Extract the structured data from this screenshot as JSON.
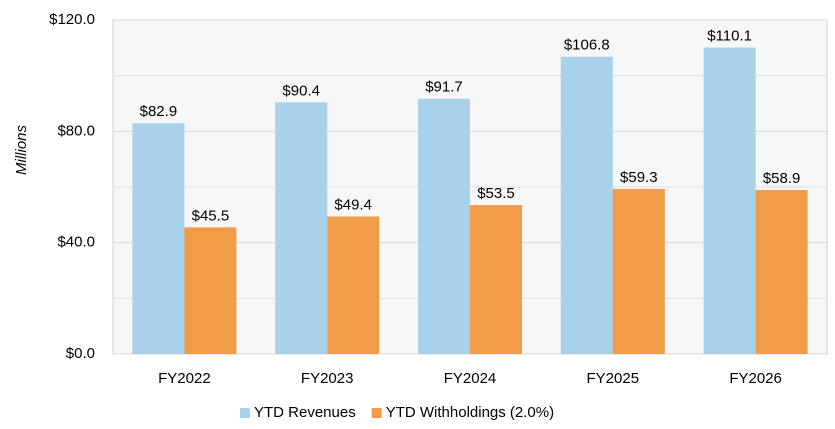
{
  "chart_data": {
    "type": "bar",
    "y_label": "Millions",
    "categories": [
      "FY2022",
      "FY2023",
      "FY2024",
      "FY2025",
      "FY2026"
    ],
    "series": [
      {
        "name": "YTD Revenues",
        "color": "#a9d1ea",
        "values": [
          82.9,
          90.4,
          91.7,
          106.8,
          110.1
        ],
        "value_labels": [
          "$82.9",
          "$90.4",
          "$91.7",
          "$106.8",
          "$110.1"
        ]
      },
      {
        "name": "YTD Withholdings (2.0%)",
        "color": "#f09c48",
        "values": [
          45.5,
          49.4,
          53.5,
          59.3,
          58.9
        ],
        "value_labels": [
          "$45.5",
          "$49.4",
          "$53.5",
          "$59.3",
          "$58.9"
        ]
      }
    ],
    "ylim": [
      0,
      120
    ],
    "yticks": [
      {
        "value": 0,
        "label": "$0.0"
      },
      {
        "value": 40,
        "label": "$40.0"
      },
      {
        "value": 80,
        "label": "$80.0"
      },
      {
        "value": 120,
        "label": "$120.0"
      }
    ],
    "minor_yticks": [
      20,
      60,
      100
    ],
    "grid": true,
    "legend": "bottom"
  }
}
